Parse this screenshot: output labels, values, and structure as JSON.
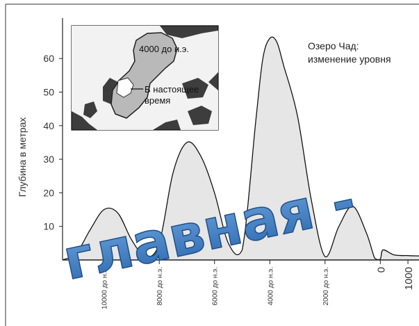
{
  "chart_data": {
    "type": "area",
    "title_lines": [
      "Озеро Чад:",
      "изменение уровня"
    ],
    "ylabel": "Глубина в метрах",
    "xlabel": "",
    "ylim": [
      0,
      70
    ],
    "xlim": [
      -11500,
      1400
    ],
    "yticks": [
      10,
      20,
      30,
      40,
      50,
      60
    ],
    "xtick_labels": [
      {
        "value": -10000,
        "label": "10000 до н.э."
      },
      {
        "value": -8000,
        "label": "8000 до н.э."
      },
      {
        "value": -6000,
        "label": "6000 до н.э."
      },
      {
        "value": -4000,
        "label": "4000 до н.э."
      },
      {
        "value": -2000,
        "label": "2000 до н.э."
      },
      {
        "value": 0,
        "label": "0"
      },
      {
        "value": 1000,
        "label": "1000"
      }
    ],
    "grid": false,
    "x": [
      -11500,
      -11000,
      -10500,
      -10000,
      -9500,
      -9000,
      -8500,
      -8000,
      -7500,
      -7000,
      -6500,
      -6000,
      -5500,
      -5000,
      -4500,
      -4250,
      -4000,
      -3750,
      -3500,
      -3000,
      -2500,
      -2000,
      -1500,
      -1000,
      -500,
      -200,
      0,
      100,
      500,
      1000,
      1400
    ],
    "y": [
      0,
      2,
      9,
      15,
      14,
      6,
      1,
      5,
      26,
      35,
      31,
      20,
      5,
      3,
      42,
      60,
      66,
      65,
      58,
      43,
      18,
      1,
      10,
      16,
      8,
      0.5,
      0.3,
      3,
      1.5,
      1.3,
      1.2
    ],
    "inset_map": {
      "labels": [
        "4000 до н.э.",
        "В настоящее",
        "время"
      ]
    },
    "watermark": "главная -",
    "colors": {
      "fill": "#e6e6e6",
      "line": "#111111",
      "map_land": "#b8b8b8",
      "map_dark": "#404040",
      "watermark": "#3a7fc6"
    }
  }
}
